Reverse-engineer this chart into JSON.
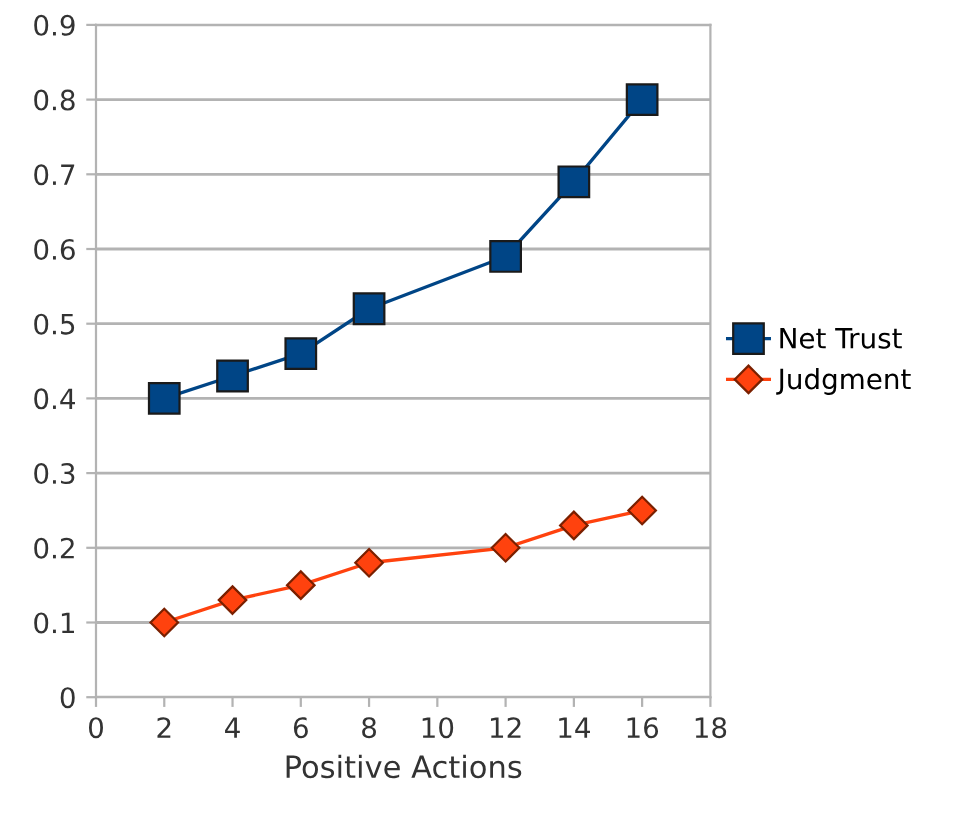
{
  "chart_data": {
    "type": "line",
    "xlabel": "Positive Actions",
    "series": [
      {
        "name": "Net Trust",
        "color": "#004586",
        "marker": "square",
        "x": [
          2,
          4,
          6,
          8,
          12,
          14,
          16
        ],
        "values": [
          0.4,
          0.43,
          0.46,
          0.52,
          0.59,
          0.69,
          0.8
        ]
      },
      {
        "name": "Judgment",
        "color": "#ff420e",
        "marker": "diamond",
        "x": [
          2,
          4,
          6,
          8,
          12,
          14,
          16
        ],
        "values": [
          0.1,
          0.13,
          0.15,
          0.18,
          0.2,
          0.23,
          0.25
        ]
      }
    ],
    "xlim": [
      0,
      18
    ],
    "xticks": [
      0,
      2,
      4,
      6,
      8,
      10,
      12,
      14,
      16,
      18
    ],
    "ylim": [
      0,
      0.9
    ],
    "yticks": [
      0,
      0.1,
      0.2,
      0.3,
      0.4,
      0.5,
      0.6,
      0.7,
      0.8,
      0.9
    ],
    "grid": "y",
    "legend": "right",
    "line_style": "solid"
  }
}
